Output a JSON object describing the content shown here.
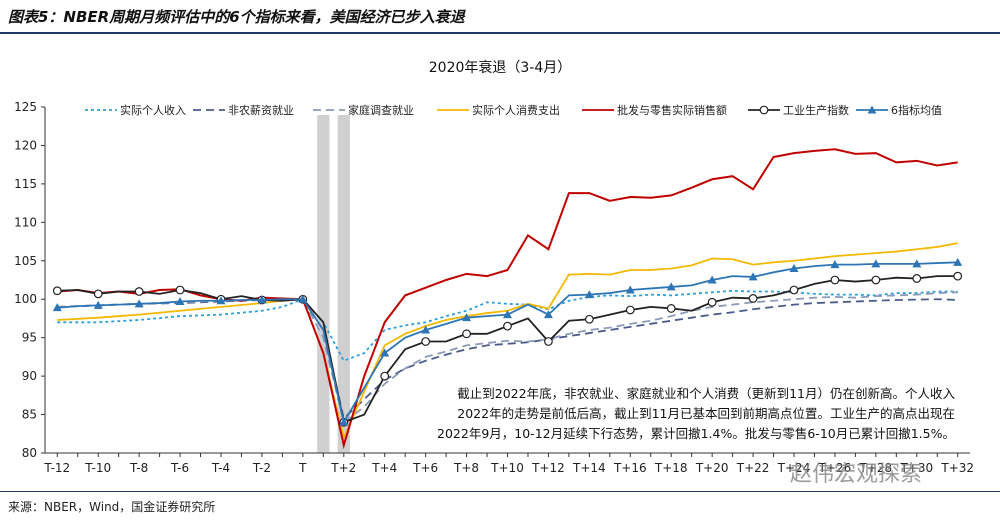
{
  "figure_title": "图表5：NBER周期月频评估中的6个指标来看，美国经济已步入衰退",
  "source": "来源：NBER，Wind，国金证券研究所",
  "watermark": "赵伟宏观探索",
  "chart_data": {
    "type": "line",
    "title": "2020年衰退（3-4月）",
    "ylim": [
      80,
      125
    ],
    "yticks": [
      80,
      85,
      90,
      95,
      100,
      105,
      110,
      115,
      120,
      125
    ],
    "x_labels": [
      "T-12",
      "T-10",
      "T-8",
      "T-6",
      "T-4",
      "T-2",
      "T",
      "T+2",
      "T+4",
      "T+6",
      "T+8",
      "T+10",
      "T+12",
      "T+14",
      "T+16",
      "T+18",
      "T+20",
      "T+22",
      "T+24",
      "T+26",
      "T+28",
      "T+30",
      "T+32"
    ],
    "x_label_positions": [
      -12,
      -10,
      -8,
      -6,
      -4,
      -2,
      0,
      2,
      4,
      6,
      8,
      10,
      12,
      14,
      16,
      18,
      20,
      22,
      24,
      26,
      28,
      30,
      32
    ],
    "xlim": [
      -12.6,
      32.6
    ],
    "recession_bands": [
      [
        0.7,
        1.3
      ],
      [
        1.7,
        2.3
      ]
    ],
    "grid": false,
    "legend_position": "top",
    "series": [
      {
        "name": "实际个人收入",
        "color": "#2e9fd8",
        "style": "dot",
        "marker": "none",
        "x": [
          -12,
          -10,
          -8,
          -6,
          -4,
          -2,
          -1,
          0,
          1,
          2,
          3,
          4,
          5,
          6,
          7,
          8,
          9,
          10,
          11,
          12,
          13,
          14,
          15,
          16,
          17,
          18,
          19,
          20,
          21,
          22,
          23,
          24,
          25,
          26,
          27,
          28,
          29,
          30,
          31,
          32
        ],
        "y": [
          97,
          97,
          97.3,
          97.8,
          98,
          98.5,
          99,
          100,
          97,
          92,
          93,
          96,
          96.6,
          97,
          97.8,
          98.5,
          99.6,
          99.4,
          99.3,
          98.7,
          99.8,
          100.3,
          100.5,
          100.4,
          100.6,
          100.5,
          100.7,
          100.9,
          101.1,
          101,
          101,
          100.9,
          100.7,
          100.6,
          100.6,
          100.5,
          100.8,
          100.8,
          101,
          101
        ]
      },
      {
        "name": "非农薪资就业",
        "color": "#4a5a8a",
        "style": "dash",
        "marker": "none",
        "x": [
          -12,
          -10,
          -8,
          -6,
          -4,
          -2,
          0,
          1,
          2,
          3,
          4,
          5,
          6,
          7,
          8,
          9,
          10,
          11,
          12,
          13,
          14,
          15,
          16,
          17,
          18,
          19,
          20,
          21,
          22,
          23,
          24,
          25,
          26,
          27,
          28,
          29,
          30,
          31,
          32
        ],
        "y": [
          99,
          99.2,
          99.4,
          99.5,
          99.7,
          99.9,
          100,
          96,
          84.5,
          87,
          89.5,
          91,
          92,
          92.8,
          93.5,
          94,
          94.2,
          94.4,
          94.8,
          95.2,
          95.6,
          96,
          96.4,
          96.8,
          97.2,
          97.6,
          98,
          98.3,
          98.7,
          99,
          99.3,
          99.5,
          99.6,
          99.7,
          99.8,
          99.9,
          99.95,
          100,
          99.9
        ]
      },
      {
        "name": "家庭调查就业",
        "color": "#8a9ab8",
        "style": "dash",
        "marker": "none",
        "x": [
          -12,
          -10,
          -8,
          -6,
          -4,
          -2,
          0,
          1,
          2,
          3,
          4,
          5,
          6,
          7,
          8,
          9,
          10,
          11,
          12,
          13,
          14,
          15,
          16,
          17,
          18,
          19,
          20,
          21,
          22,
          23,
          24,
          25,
          26,
          27,
          28,
          29,
          30,
          31,
          32
        ],
        "y": [
          99,
          99.2,
          99.4,
          99.6,
          99.8,
          99.9,
          100,
          95,
          84,
          86,
          89,
          91,
          92.5,
          93.2,
          94,
          94.3,
          94.6,
          94.5,
          94.8,
          95.5,
          96,
          96.3,
          96.8,
          97.2,
          97.8,
          98.5,
          99,
          99.3,
          99.6,
          99.8,
          100,
          100.2,
          100.3,
          100.2,
          100.4,
          100.5,
          100.6,
          100.8,
          100.9
        ]
      },
      {
        "name": "实际个人消费支出",
        "color": "#f5b800",
        "style": "solid",
        "marker": "none",
        "x": [
          -12,
          -10,
          -8,
          -6,
          -4,
          -2,
          -1,
          0,
          1,
          2,
          3,
          4,
          5,
          6,
          7,
          8,
          9,
          10,
          11,
          12,
          13,
          14,
          15,
          16,
          17,
          18,
          19,
          20,
          21,
          22,
          23,
          24,
          25,
          26,
          27,
          28,
          29,
          30,
          31,
          32
        ],
        "y": [
          97.3,
          97.6,
          98,
          98.5,
          99,
          99.5,
          99.8,
          100,
          93,
          82,
          88,
          94,
          95.5,
          96.5,
          97.3,
          97.8,
          98.2,
          98.5,
          99.4,
          98.8,
          103.2,
          103.3,
          103.2,
          103.8,
          103.8,
          104,
          104.4,
          105.3,
          105.2,
          104.5,
          104.8,
          105,
          105.3,
          105.6,
          105.8,
          106,
          106.2,
          106.5,
          106.8,
          107.3
        ]
      },
      {
        "name": "批发与零售实际销售额",
        "color": "#c00000",
        "style": "solid",
        "marker": "none",
        "x": [
          -12,
          -11,
          -10,
          -9,
          -8,
          -7,
          -6,
          -5,
          -4,
          -3,
          -2,
          -1,
          0,
          1,
          2,
          3,
          4,
          5,
          6,
          7,
          8,
          9,
          10,
          11,
          12,
          13,
          14,
          15,
          16,
          17,
          18,
          19,
          20,
          21,
          22,
          23,
          24,
          25,
          26,
          27,
          28,
          29,
          30,
          31,
          32
        ],
        "y": [
          101,
          101.2,
          100.8,
          101,
          100.7,
          101.2,
          101.3,
          100.5,
          100,
          99.8,
          100.2,
          100.1,
          100,
          93,
          81,
          90,
          97,
          100.5,
          101.5,
          102.5,
          103.3,
          103,
          103.8,
          108.3,
          106.5,
          113.8,
          113.8,
          112.8,
          113.3,
          113.2,
          113.5,
          114.5,
          115.6,
          116,
          114.3,
          118.5,
          119,
          119.3,
          119.5,
          118.9,
          119,
          117.8,
          118,
          117.4,
          117.8
        ]
      },
      {
        "name": "工业生产指数",
        "color": "#222222",
        "style": "solid",
        "marker": "circle",
        "x": [
          -12,
          -11,
          -10,
          -9,
          -8,
          -7,
          -6,
          -5,
          -4,
          -3,
          -2,
          -1,
          0,
          1,
          2,
          3,
          4,
          5,
          6,
          7,
          8,
          9,
          10,
          11,
          12,
          13,
          14,
          15,
          16,
          17,
          18,
          19,
          20,
          21,
          22,
          23,
          24,
          25,
          26,
          27,
          28,
          29,
          30,
          31,
          32
        ],
        "y": [
          101.1,
          101.2,
          100.7,
          101,
          101,
          100.7,
          101.2,
          100.8,
          100,
          100.4,
          99.9,
          99.8,
          100,
          97,
          84,
          85,
          90,
          93.5,
          94.5,
          94.5,
          95.5,
          95.5,
          96.5,
          97.5,
          94.5,
          97.2,
          97.4,
          98,
          98.6,
          99,
          98.8,
          98.5,
          99.6,
          100.2,
          100.1,
          100.5,
          101.2,
          102,
          102.5,
          102.3,
          102.5,
          102.8,
          102.7,
          103,
          103
        ]
      },
      {
        "name": "6指标均值",
        "color": "#2e75b6",
        "style": "solid",
        "marker": "triangle",
        "x": [
          -12,
          -11,
          -10,
          -9,
          -8,
          -7,
          -6,
          -5,
          -4,
          -3,
          -2,
          -1,
          0,
          1,
          2,
          3,
          4,
          5,
          6,
          7,
          8,
          9,
          10,
          11,
          12,
          13,
          14,
          15,
          16,
          17,
          18,
          19,
          20,
          21,
          22,
          23,
          24,
          25,
          26,
          27,
          28,
          29,
          30,
          31,
          32
        ],
        "y": [
          98.9,
          99.1,
          99.2,
          99.3,
          99.4,
          99.5,
          99.7,
          99.8,
          99.8,
          99.9,
          99.9,
          100,
          100,
          96,
          84,
          88.5,
          93,
          95,
          96,
          96.8,
          97.6,
          97.8,
          98,
          99.3,
          98,
          100.5,
          100.6,
          100.8,
          101.2,
          101.4,
          101.6,
          101.8,
          102.5,
          103,
          102.9,
          103.5,
          104,
          104.3,
          104.5,
          104.5,
          104.6,
          104.6,
          104.6,
          104.7,
          104.8
        ]
      }
    ],
    "annotation_lines": [
      "截止到2022年底，非农就业、家庭就业和个人消费（更新到11月）仍在创新高。个人收入",
      "2022年的走势是前低后高，截止到11月已基本回到前期高点位置。工业生产的高点出现在",
      "2022年9月，10-12月延续下行态势，累计回撤1.4%。批发与零售6-10月已累计回撤1.5%。"
    ]
  }
}
